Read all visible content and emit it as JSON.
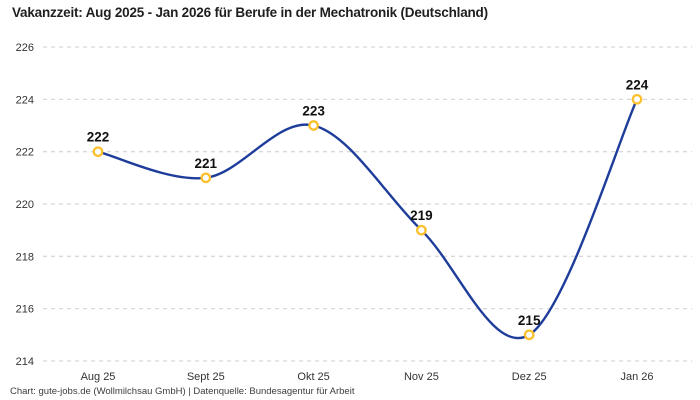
{
  "header": {
    "title": "Vakanzzeit: Aug 2025 - Jan 2026 für Berufe in der Mechatronik (Deutschland)"
  },
  "footer": {
    "credit": "Chart: gute-jobs.de (Wollmilchsau GmbH) | Datenquelle: Bundesagentur für Arbeit"
  },
  "chart_data": {
    "type": "line",
    "title": "Vakanzzeit: Aug 2025 - Jan 2026 für Berufe in der Mechatronik (Deutschland)",
    "categories": [
      "Aug 25",
      "Sept 25",
      "Okt 25",
      "Nov 25",
      "Dez 25",
      "Jan 26"
    ],
    "values": [
      222,
      221,
      223,
      219,
      215,
      224
    ],
    "data_labels": [
      222,
      221,
      223,
      219,
      215,
      224
    ],
    "xlabel": "",
    "ylabel": "",
    "ylim": [
      214,
      226
    ],
    "yticks": [
      226,
      224,
      222,
      220,
      218,
      216,
      214
    ],
    "grid": "horizontal-dashed",
    "legend": "none",
    "curve": "smooth",
    "colors": {
      "line": "#1e3d9b",
      "marker_stroke": "#fcc02d",
      "marker_fill": "#ffffff",
      "grid": "#cccccc",
      "tick_text": "#333333",
      "label_text": "#111111",
      "title_text": "#1f1f1f",
      "footer_text": "#3d3d3d",
      "background": "#ffffff"
    }
  }
}
